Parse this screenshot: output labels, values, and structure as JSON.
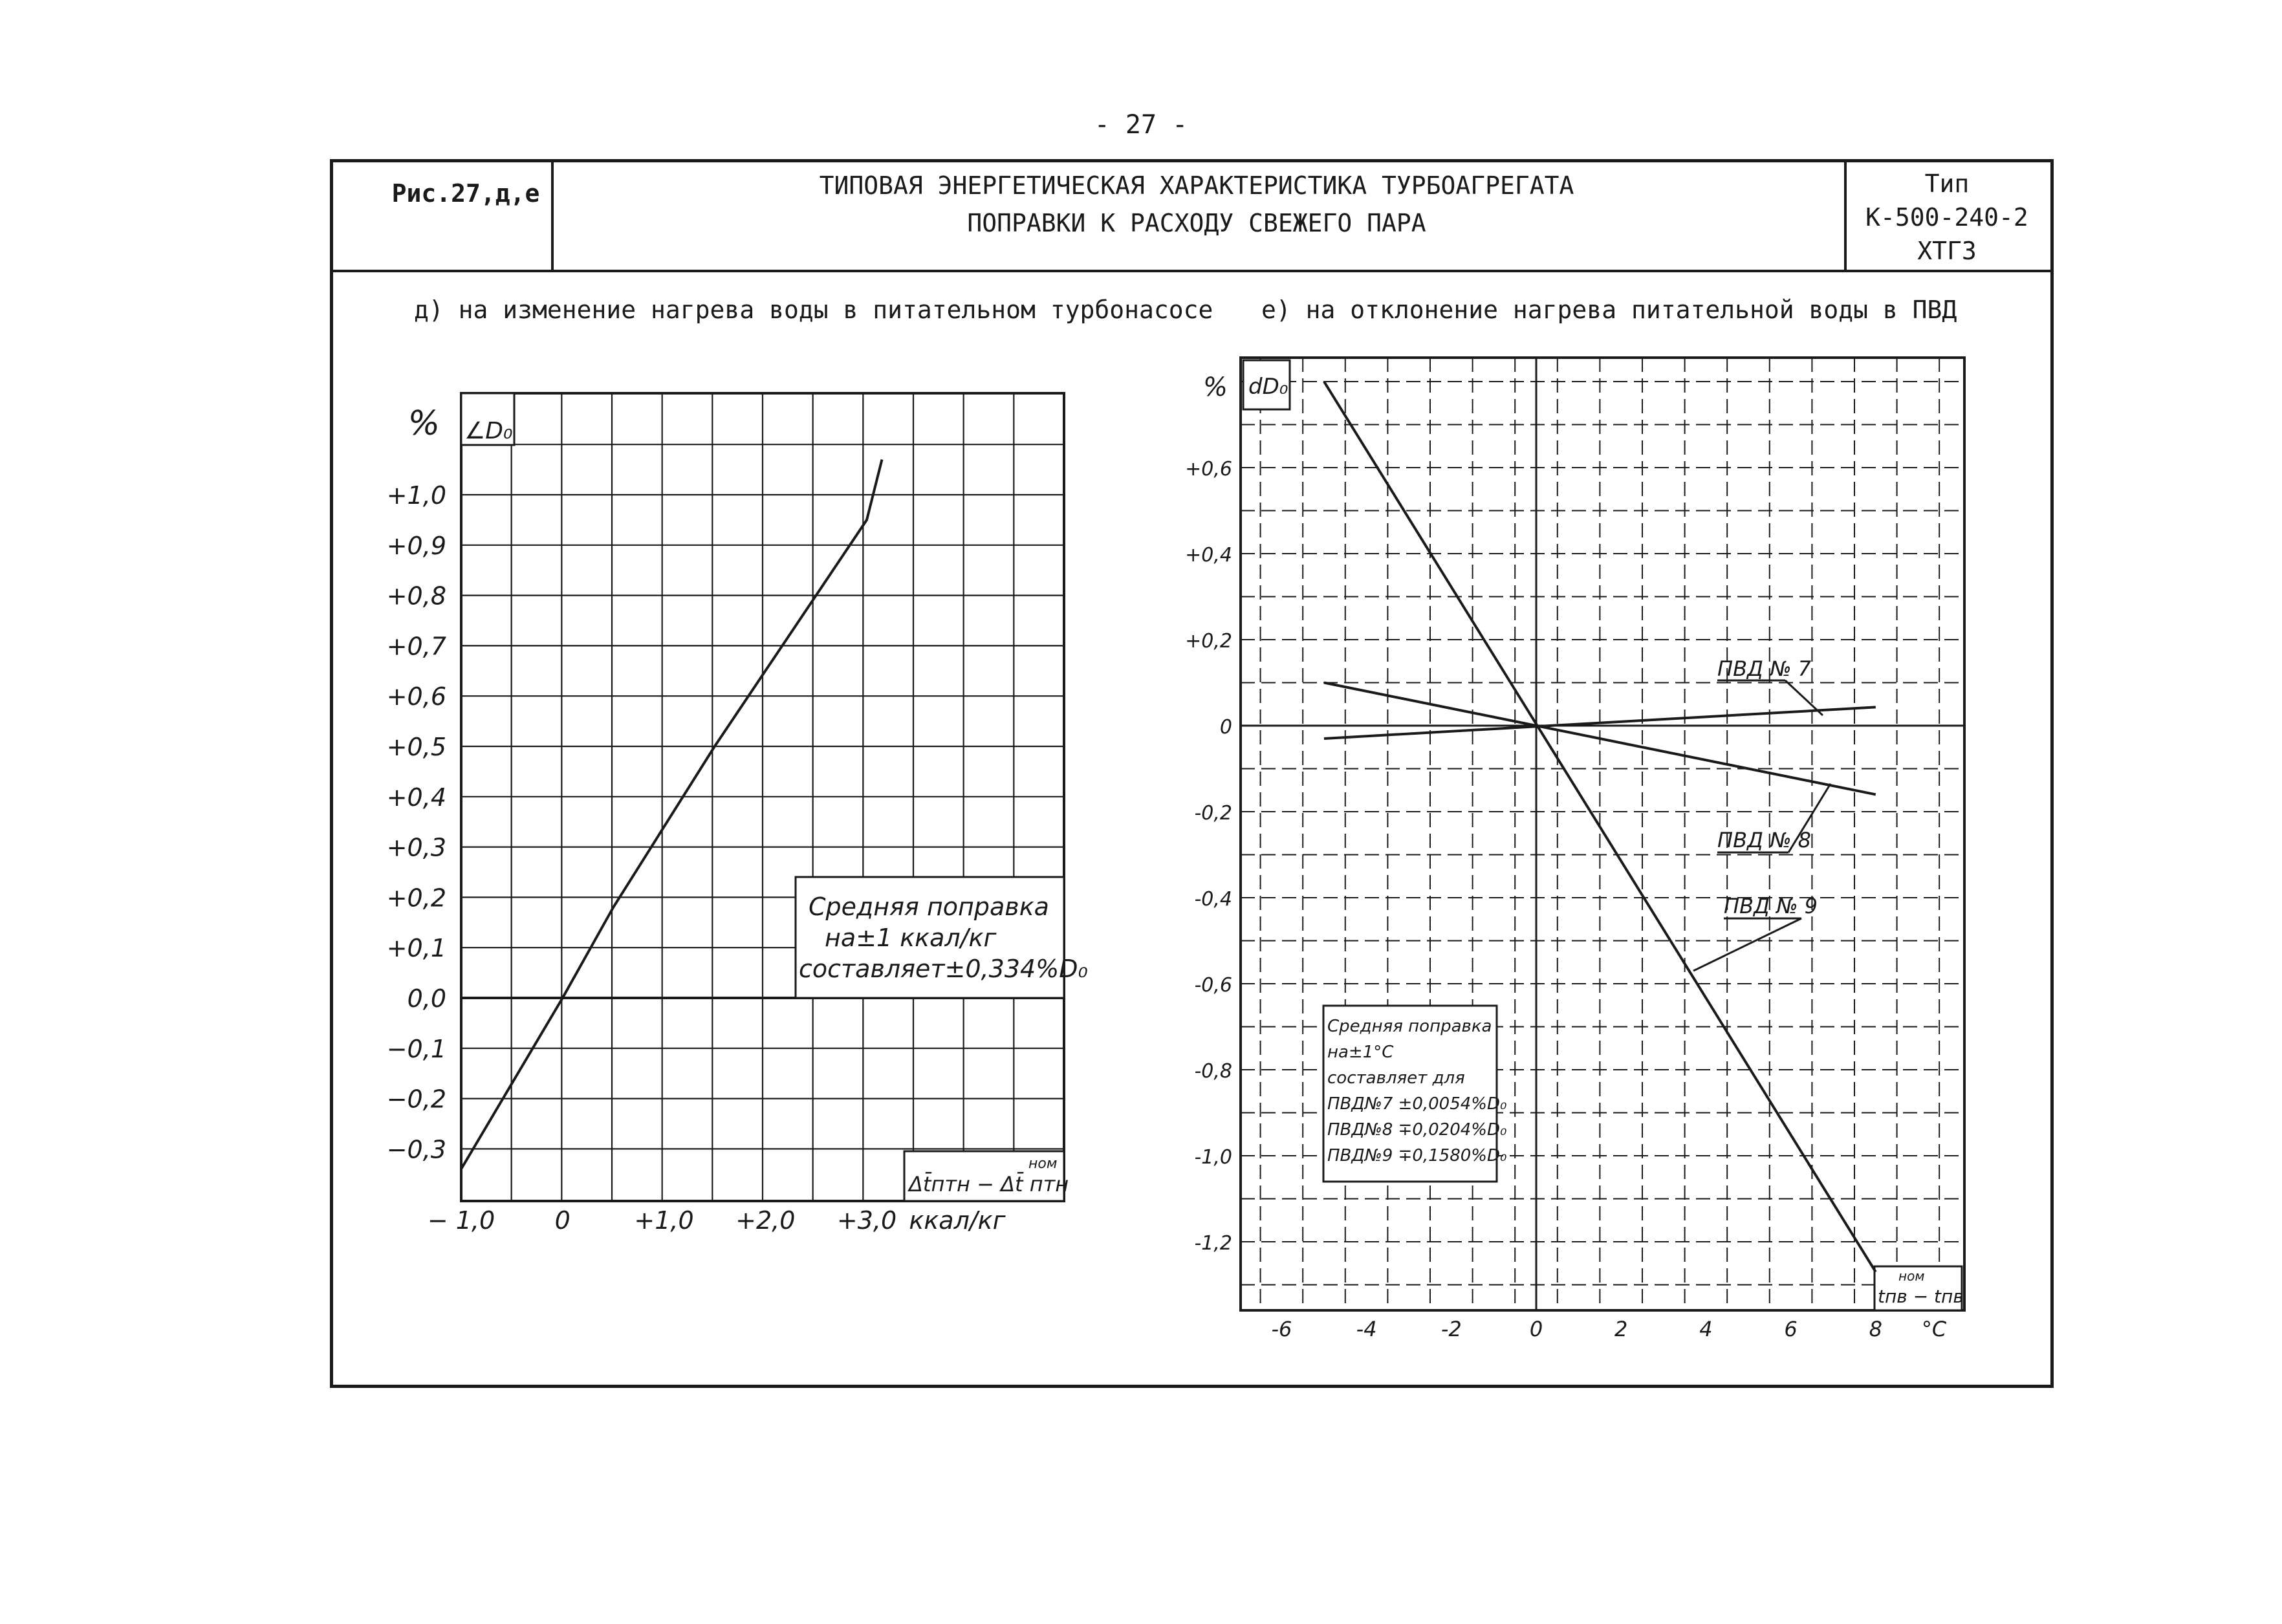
{
  "page_number": "- 27 -",
  "header": {
    "figure_label": "Рис.27,д,е",
    "title_line1": "ТИПОВАЯ ЭНЕРГЕТИЧЕСКАЯ ХАРАКТЕРИСТИКА ТУРБОАГРЕГАТА",
    "title_line2": "ПОПРАВКИ К РАСХОДУ СВЕЖЕГО ПАРА",
    "type_line1": "Тип",
    "type_line2": "К-500-240-2",
    "type_line3": "ХТГЗ"
  },
  "colors": {
    "ink": "#1a1a1a",
    "paper": "#ffffff"
  },
  "chart_data": [
    {
      "type": "line",
      "subtitle": "д) на изменение нагрева воды в питательном турбонасосе",
      "y_unit": "%",
      "y_symbol": "∠D₀",
      "y_tick_labels": [
        "+1,0",
        "+0,9",
        "+0,8",
        "+0,7",
        "+0,6",
        "+0,5",
        "+0,4",
        "+0,3",
        "+0,2",
        "+0,1",
        "0,0",
        "−0,1",
        "−0,2",
        "−0,3"
      ],
      "y_ticks": [
        1.0,
        0.9,
        0.8,
        0.7,
        0.6,
        0.5,
        0.4,
        0.3,
        0.2,
        0.1,
        0.0,
        -0.1,
        -0.2,
        -0.3
      ],
      "x_tick_labels": [
        "− 1,0",
        "0",
        "+1,0",
        "+2,0",
        "+3,0"
      ],
      "x_ticks": [
        -1.0,
        0,
        1.0,
        2.0,
        3.0
      ],
      "x_unit": "ккал/кг",
      "x_label": "Δt̄птн − Δt̄ птн",
      "x_label_sup": "ном",
      "xlim": [
        -1.0,
        3.25
      ],
      "ylim": [
        -0.35,
        1.22
      ],
      "grid": true,
      "series": [
        {
          "x": [
            -1.0,
            0.0,
            0.5,
            1.0,
            1.5,
            2.0,
            2.5,
            3.0,
            3.15
          ],
          "y": [
            -0.34,
            0.0,
            0.18,
            0.34,
            0.5,
            0.65,
            0.8,
            0.95,
            1.07
          ]
        }
      ],
      "annotation": [
        "Средняя поправка",
        "на±1 ккал/кг",
        "составляет±0,334%D₀"
      ]
    },
    {
      "type": "line",
      "subtitle": "е) на отклонение нагрева питательной воды в ПВД",
      "y_unit": "%",
      "y_symbol": "dD₀",
      "y_tick_labels": [
        "+0,6",
        "+0,4",
        "+0,2",
        "0",
        "-0,2",
        "-0,4",
        "-0,6",
        "-0,8",
        "-1,0",
        "-1,2"
      ],
      "y_ticks": [
        0.6,
        0.4,
        0.2,
        0,
        -0.2,
        -0.4,
        -0.6,
        -0.8,
        -1.0,
        -1.2
      ],
      "x_tick_labels": [
        "-6",
        "-4",
        "-2",
        "0",
        "2",
        "4",
        "6",
        "8"
      ],
      "x_ticks": [
        -6,
        -4,
        -2,
        0,
        2,
        4,
        6,
        8
      ],
      "x_unit": "°C",
      "x_label": "tпв − tпв",
      "x_label_sup": "ном",
      "xlim": [
        -7,
        10
      ],
      "ylim": [
        -1.35,
        0.85
      ],
      "grid": true,
      "series": [
        {
          "name": "ПВД № 7",
          "x": [
            -5,
            8
          ],
          "y": [
            -0.03,
            0.043
          ]
        },
        {
          "name": "ПВД № 8",
          "x": [
            -5,
            8
          ],
          "y": [
            0.1,
            -0.16
          ]
        },
        {
          "name": "ПВД № 9",
          "x": [
            -5,
            8
          ],
          "y": [
            0.8,
            -1.27
          ]
        }
      ],
      "annotation": [
        "Средняя поправка",
        "на±1°C",
        "составляет для",
        "ПВД№7 ±0,0054%D₀",
        "ПВД№8 ∓0,0204%D₀",
        "ПВД№9 ∓0,1580%D₀"
      ]
    }
  ]
}
